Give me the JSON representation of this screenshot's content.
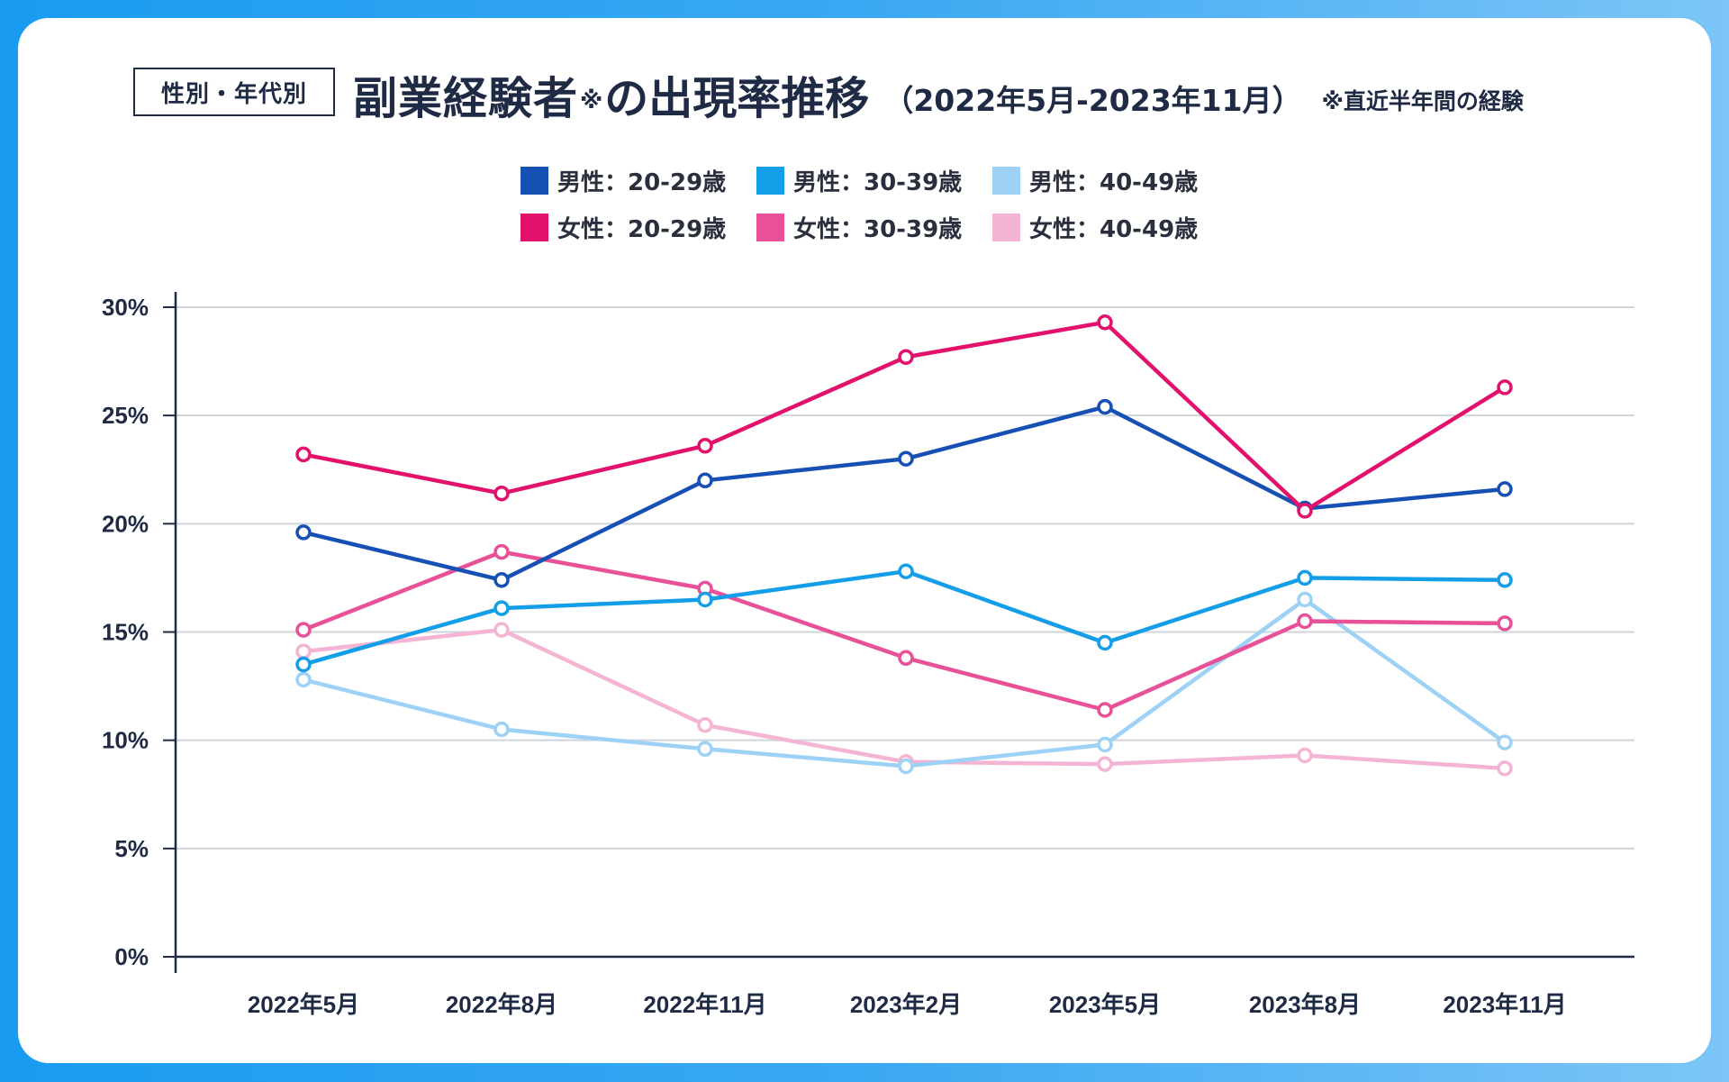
{
  "header": {
    "tag": "性別・年代別",
    "title_main": "副業経験者",
    "title_mark": "※",
    "title_rest": "の出現率推移",
    "period": "（2022年5月-2023年11月）",
    "note": "※直近半年間の経験"
  },
  "colors": {
    "male_20_29": "#1650b5",
    "male_30_39": "#159ee8",
    "male_40_49": "#9dd2f6",
    "female_20_29": "#e2126c",
    "female_30_39": "#e85197",
    "female_40_49": "#f4b4d3",
    "grid": "#cfd3da",
    "axis": "#1f2a44"
  },
  "chart_data": {
    "type": "line",
    "title": "副業経験者※の出現率推移（2022年5月-2023年11月）",
    "xlabel": "",
    "ylabel": "",
    "ylim": [
      0,
      30
    ],
    "yticks": [
      0,
      5,
      10,
      15,
      20,
      25,
      30
    ],
    "ytick_labels": [
      "0%",
      "5%",
      "10%",
      "15%",
      "20%",
      "25%",
      "30%"
    ],
    "grid": true,
    "legend_position": "top-center",
    "categories": [
      "2022年5月",
      "2022年8月",
      "2022年11月",
      "2023年2月",
      "2023年5月",
      "2023年8月",
      "2023年11月"
    ],
    "series": [
      {
        "key": "female_40_49",
        "name": "女性：40-49歳",
        "values": [
          14.1,
          15.1,
          10.7,
          9.0,
          8.9,
          9.3,
          8.7
        ]
      },
      {
        "key": "male_40_49",
        "name": "男性：40-49歳",
        "values": [
          12.8,
          10.5,
          9.6,
          8.8,
          9.8,
          16.5,
          9.9
        ]
      },
      {
        "key": "female_30_39",
        "name": "女性：30-39歳",
        "values": [
          15.1,
          18.7,
          17.0,
          13.8,
          11.4,
          15.5,
          15.4
        ]
      },
      {
        "key": "male_30_39",
        "name": "男性：30-39歳",
        "values": [
          13.5,
          16.1,
          16.5,
          17.8,
          14.5,
          17.5,
          17.4
        ]
      },
      {
        "key": "male_20_29",
        "name": "男性：20-29歳",
        "values": [
          19.6,
          17.4,
          22.0,
          23.0,
          25.4,
          20.7,
          21.6
        ]
      },
      {
        "key": "female_20_29",
        "name": "女性：20-29歳",
        "values": [
          23.2,
          21.4,
          23.6,
          27.7,
          29.3,
          20.6,
          26.3
        ]
      }
    ],
    "legend": [
      {
        "key": "male_20_29",
        "label": "男性：20-29歳"
      },
      {
        "key": "male_30_39",
        "label": "男性：30-39歳"
      },
      {
        "key": "male_40_49",
        "label": "男性：40-49歳"
      },
      {
        "key": "female_20_29",
        "label": "女性：20-29歳"
      },
      {
        "key": "female_30_39",
        "label": "女性：30-39歳"
      },
      {
        "key": "female_40_49",
        "label": "女性：40-49歳"
      }
    ]
  }
}
